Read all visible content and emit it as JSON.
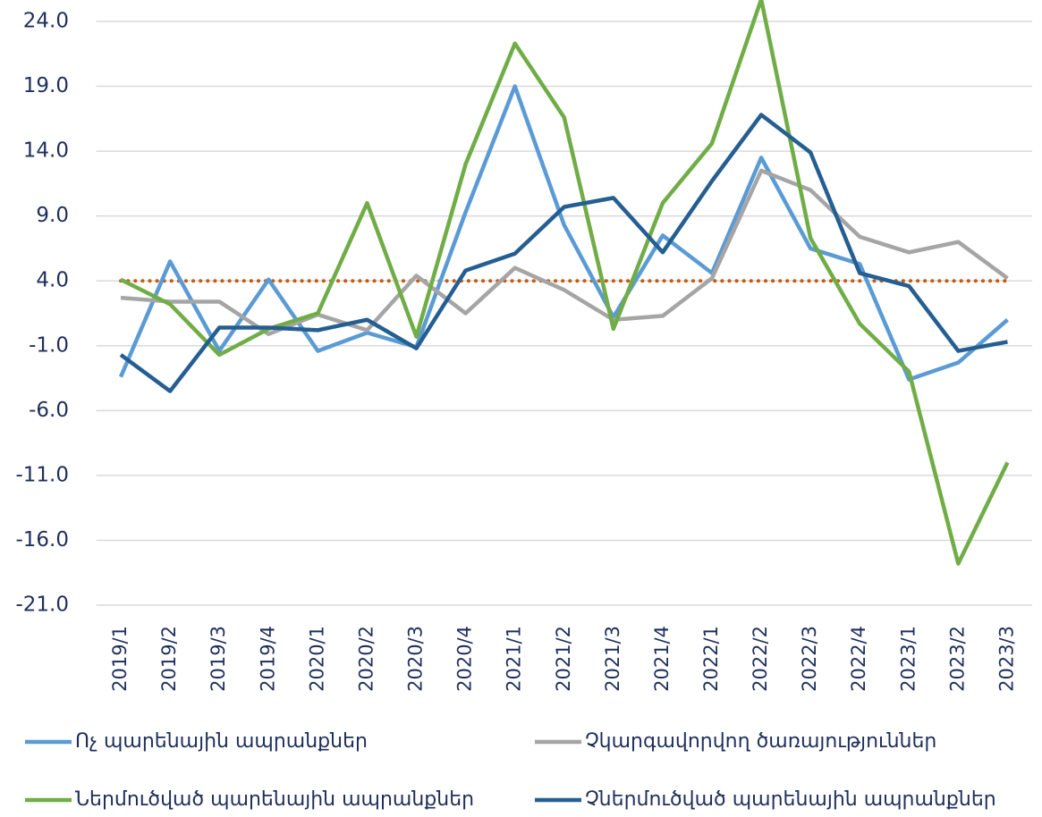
{
  "chart_data": {
    "type": "line",
    "categories": [
      "2019/1",
      "2019/2",
      "2019/3",
      "2019/4",
      "2020/1",
      "2020/2",
      "2020/3",
      "2020/4",
      "2021/1",
      "2021/2",
      "2021/3",
      "2021/4",
      "2022/1",
      "2022/2",
      "2022/3",
      "2022/4",
      "2023/1",
      "2023/2",
      "2023/3"
    ],
    "series": [
      {
        "name": "Ոչ պարենային ապրանքներ",
        "color": "#5b9bd5",
        "values": [
          -3.4,
          5.5,
          -1.4,
          4.1,
          -1.4,
          0.0,
          -1.1,
          9.3,
          19.0,
          8.3,
          1.2,
          7.5,
          4.6,
          13.5,
          6.5,
          5.3,
          -3.6,
          -2.3,
          1.0
        ]
      },
      {
        "name": "Չկարգավորվող ծառայություններ",
        "color": "#a5a5a5",
        "values": [
          2.7,
          2.4,
          2.4,
          -0.1,
          1.4,
          0.2,
          4.4,
          1.5,
          5.0,
          3.3,
          1.0,
          1.3,
          4.2,
          12.5,
          11.0,
          7.4,
          6.2,
          7.0,
          4.2
        ]
      },
      {
        "name": "Ներմուծված պարենային ապրանքներ",
        "color": "#70ad47",
        "values": [
          4.1,
          2.2,
          -1.7,
          0.3,
          1.5,
          10.0,
          -0.3,
          13.0,
          22.3,
          16.6,
          0.3,
          10.0,
          14.6,
          25.7,
          7.3,
          0.7,
          -3.0,
          -17.8,
          -10.0
        ]
      },
      {
        "name": "Չներմուծված պարենային ապրանքներ",
        "color": "#255e91",
        "values": [
          -1.7,
          -4.5,
          0.4,
          0.4,
          0.2,
          1.0,
          -1.2,
          4.8,
          6.1,
          9.7,
          10.4,
          6.2,
          11.7,
          16.8,
          13.9,
          4.6,
          3.6,
          -1.4,
          -0.7
        ]
      }
    ],
    "hline": 4,
    "hline_color": "#c55a11",
    "ylim": [
      -21,
      24
    ],
    "yticks": [
      {
        "value": -21,
        "label": "-21.0"
      },
      {
        "value": -16,
        "label": "-16.0"
      },
      {
        "value": -11,
        "label": "-11.0"
      },
      {
        "value": -6,
        "label": "-6.0"
      },
      {
        "value": -1,
        "label": "-1.0"
      },
      {
        "value": 4,
        "label": "4.0"
      },
      {
        "value": 9,
        "label": "9.0"
      },
      {
        "value": 14,
        "label": "14.0"
      },
      {
        "value": 19,
        "label": "19.0"
      },
      {
        "value": 24,
        "label": "24.0"
      }
    ],
    "grid": true
  }
}
